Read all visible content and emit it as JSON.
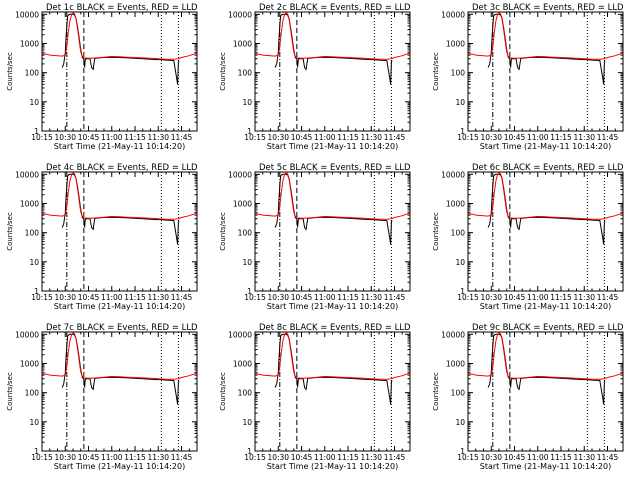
{
  "chart_data": [
    {
      "title": "Det 1c BLACK = Events, RED = LLD",
      "type": "line"
    },
    {
      "title": "Det 2c BLACK = Events, RED = LLD",
      "type": "line"
    },
    {
      "title": "Det 3c BLACK = Events, RED = LLD",
      "type": "line"
    },
    {
      "title": "Det 4c BLACK = Events, RED = LLD",
      "type": "line"
    },
    {
      "title": "Det 5c BLACK = Events, RED = LLD",
      "type": "line"
    },
    {
      "title": "Det 6c BLACK = Events, RED = LLD",
      "type": "line"
    },
    {
      "title": "Det 7c BLACK = Events, RED = LLD",
      "type": "line"
    },
    {
      "title": "Det 8c BLACK = Events, RED = LLD",
      "type": "line"
    },
    {
      "title": "Det 9c BLACK = Events, RED = LLD",
      "type": "line"
    }
  ],
  "shared": {
    "xlabel": "Start Time (21-May-11 10:14:20)",
    "ylabel": "Counts/sec",
    "x_ticks": [
      "10:15",
      "10:30",
      "10:45",
      "11:00",
      "11:15",
      "11:30",
      "11:45"
    ],
    "x_tick_minutes": [
      15,
      30,
      45,
      60,
      75,
      90,
      105
    ],
    "xlim_minutes": [
      15,
      115
    ],
    "y_ticks": [
      "1",
      "10",
      "100",
      "1000",
      "10000"
    ],
    "y_tick_values": [
      1,
      10,
      100,
      1000,
      10000
    ],
    "ylim": [
      1,
      12000
    ],
    "yscale": "log",
    "vlines": [
      {
        "minute": 31,
        "style": "dashdot"
      },
      {
        "minute": 42,
        "style": "dashed"
      },
      {
        "minute": 92,
        "style": "dotted"
      },
      {
        "minute": 103,
        "style": "dotted"
      }
    ],
    "series": [
      {
        "color": "#000000",
        "x": [
          28,
          29,
          30,
          30.5,
          31,
          31.5,
          32,
          33,
          34,
          35,
          36,
          37,
          38,
          39,
          40,
          41,
          42,
          42.5,
          43,
          44,
          45,
          46,
          47,
          48,
          49,
          50,
          52,
          55,
          60,
          65,
          70,
          75,
          80,
          85,
          90,
          92,
          95,
          100,
          102,
          102.5,
          103,
          103.5
        ],
        "y": [
          150,
          200,
          500,
          1500,
          4000,
          8500,
          9500,
          10000,
          10000,
          10000,
          9500,
          7000,
          3500,
          1500,
          600,
          330,
          290,
          150,
          300,
          300,
          300,
          300,
          150,
          130,
          300,
          310,
          320,
          330,
          340,
          330,
          320,
          310,
          300,
          290,
          280,
          280,
          270,
          260,
          60,
          40,
          240,
          260
        ]
      },
      {
        "color": "#ff0000",
        "x": [
          15,
          18,
          20,
          22,
          25,
          28,
          30,
          31,
          32,
          33,
          34,
          35,
          36,
          37,
          38,
          39,
          40,
          41,
          42,
          45,
          50,
          55,
          60,
          65,
          70,
          75,
          80,
          85,
          90,
          95,
          100,
          103,
          105,
          110,
          115
        ],
        "y": [
          450,
          430,
          400,
          390,
          380,
          370,
          400,
          800,
          2500,
          6000,
          9500,
          11000,
          10500,
          7000,
          3000,
          1200,
          500,
          360,
          320,
          310,
          320,
          340,
          360,
          350,
          340,
          330,
          320,
          310,
          300,
          290,
          290,
          300,
          330,
          380,
          470
        ]
      }
    ]
  }
}
